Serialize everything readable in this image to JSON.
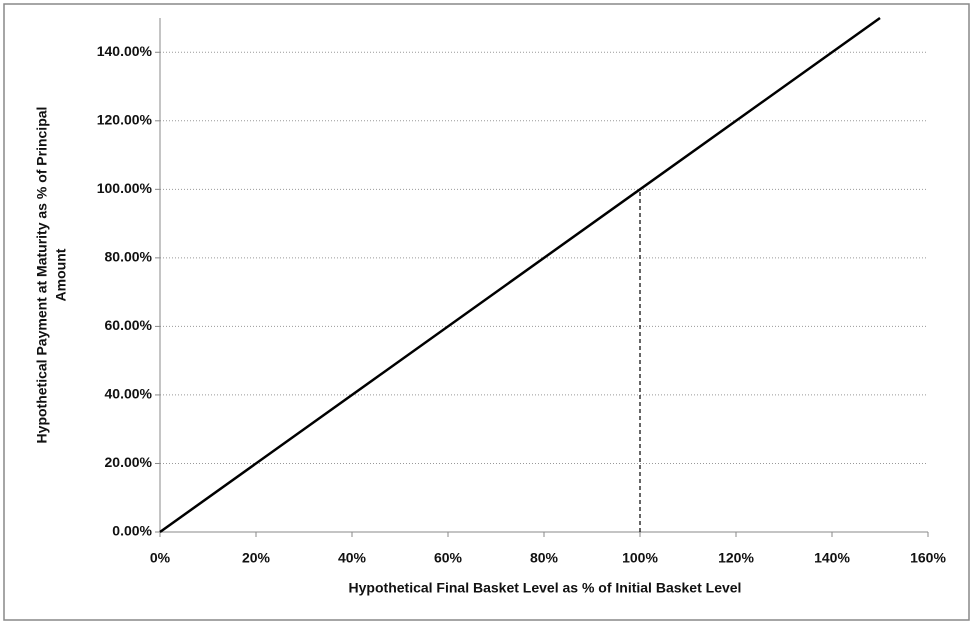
{
  "chart_data": {
    "type": "line",
    "xlabel": "Hypothetical Final Basket Level as % of Initial Basket Level",
    "ylabel": [
      "Hypothetical Payment  at Maturity  as % of Principal",
      "Amount"
    ],
    "x": [
      0,
      150
    ],
    "values": [
      0,
      150
    ],
    "color": "#000000",
    "reference_line": {
      "x": [
        100,
        100
      ],
      "values": [
        0,
        100
      ],
      "dashed": true
    },
    "xlim": [
      0,
      160
    ],
    "xticks": [
      {
        "value": 0,
        "label": "0%"
      },
      {
        "value": 20,
        "label": "20%"
      },
      {
        "value": 40,
        "label": "40%"
      },
      {
        "value": 60,
        "label": "60%"
      },
      {
        "value": 80,
        "label": "80%"
      },
      {
        "value": 100,
        "label": "100%"
      },
      {
        "value": 120,
        "label": "120%"
      },
      {
        "value": 140,
        "label": "140%"
      },
      {
        "value": 160,
        "label": "160%"
      }
    ],
    "ylim": [
      0,
      150
    ],
    "yticks": [
      {
        "value": 0,
        "label": "0.00%"
      },
      {
        "value": 20,
        "label": "20.00%"
      },
      {
        "value": 40,
        "label": "40.00%"
      },
      {
        "value": 60,
        "label": "60.00%"
      },
      {
        "value": 80,
        "label": "80.00%"
      },
      {
        "value": 100,
        "label": "100.00%"
      },
      {
        "value": 120,
        "label": "120.00%"
      },
      {
        "value": 140,
        "label": "140.00%"
      }
    ],
    "grid": true
  }
}
